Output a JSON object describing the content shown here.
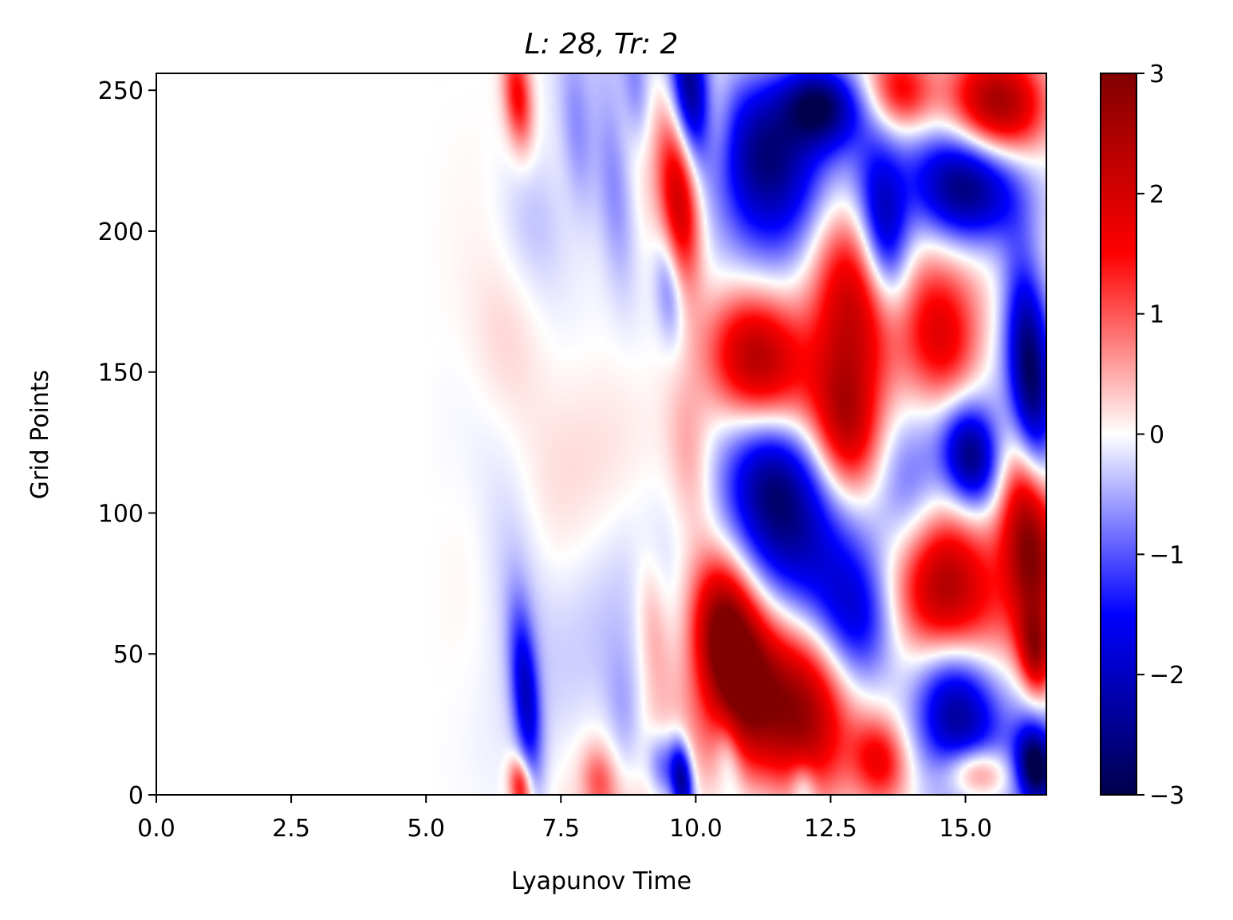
{
  "chart_data": {
    "type": "heatmap",
    "title": "L: 28, Tr: 2",
    "xlabel": "Lyapunov Time",
    "ylabel": "Grid Points",
    "xlim": [
      0,
      16.5
    ],
    "ylim": [
      0,
      256
    ],
    "x_ticks": [
      "0.0",
      "2.5",
      "5.0",
      "7.5",
      "10.0",
      "12.5",
      "15.0"
    ],
    "x_tick_values": [
      0,
      2.5,
      5,
      7.5,
      10,
      12.5,
      15
    ],
    "y_ticks": [
      "0",
      "50",
      "100",
      "150",
      "200",
      "250"
    ],
    "y_tick_values": [
      0,
      50,
      100,
      150,
      200,
      250
    ],
    "colorbar": {
      "colormap": "seismic",
      "range": [
        -3,
        3
      ],
      "ticks": [
        "3",
        "2",
        "1",
        "0",
        "−1",
        "−2",
        "−3"
      ],
      "tick_values": [
        3,
        2,
        1,
        0,
        -1,
        -2,
        -3
      ],
      "colors": [
        "#00004c",
        "#0000ff",
        "#ffffff",
        "#ff0000",
        "#800000"
      ]
    },
    "grid": false,
    "description_of_field": "Error field over space-time: near zero up to ~5 Lyapunov times, growing into large alternating positive (red) and negative (blue) diagonal bands after ~9, saturated near +/-3 by ~11-16.5.",
    "features": [
      {
        "x": 6.7,
        "y": 248,
        "w": 0.25,
        "h": 18,
        "v": 1.6
      },
      {
        "x": 6.75,
        "y": 3,
        "w": 0.2,
        "h": 10,
        "v": 1.6
      },
      {
        "x": 6.85,
        "y": 35,
        "w": 0.25,
        "h": 30,
        "v": -1.8
      },
      {
        "x": 6.6,
        "y": 85,
        "w": 0.6,
        "h": 40,
        "v": -0.4
      },
      {
        "x": 6.5,
        "y": 160,
        "w": 0.7,
        "h": 30,
        "v": 0.35
      },
      {
        "x": 7.0,
        "y": 205,
        "w": 0.6,
        "h": 25,
        "v": -0.35
      },
      {
        "x": 7.8,
        "y": 235,
        "w": 0.3,
        "h": 30,
        "v": -0.6
      },
      {
        "x": 8.5,
        "y": 215,
        "w": 0.35,
        "h": 35,
        "v": -0.8
      },
      {
        "x": 8.9,
        "y": 250,
        "w": 0.25,
        "h": 20,
        "v": -0.6
      },
      {
        "x": 8.2,
        "y": 5,
        "w": 0.3,
        "h": 12,
        "v": 0.8
      },
      {
        "x": 8.7,
        "y": 25,
        "w": 0.35,
        "h": 25,
        "v": -0.6
      },
      {
        "x": 9.2,
        "y": 60,
        "w": 0.3,
        "h": 25,
        "v": 0.6
      },
      {
        "x": 9.4,
        "y": 10,
        "w": 0.3,
        "h": 12,
        "v": -1.2
      },
      {
        "x": 9.75,
        "y": 5,
        "w": 0.2,
        "h": 14,
        "v": -2.4
      },
      {
        "x": 9.9,
        "y": 118,
        "w": 0.4,
        "h": 30,
        "v": 0.6
      },
      {
        "x": 9.5,
        "y": 180,
        "w": 0.25,
        "h": 20,
        "v": -0.8
      },
      {
        "x": 9.7,
        "y": 210,
        "w": 0.35,
        "h": 30,
        "v": 2.0
      },
      {
        "x": 9.9,
        "y": 250,
        "w": 0.35,
        "h": 25,
        "v": -2.6
      },
      {
        "x": 10.3,
        "y": 238,
        "w": 0.4,
        "h": 20,
        "v": 0.6
      },
      {
        "x": 10.5,
        "y": 60,
        "w": 0.55,
        "h": 25,
        "v": 2.2
      },
      {
        "x": 10.9,
        "y": 40,
        "w": 0.7,
        "h": 30,
        "v": 2.5
      },
      {
        "x": 10.6,
        "y": 15,
        "w": 0.25,
        "h": 15,
        "v": -0.8
      },
      {
        "x": 11.1,
        "y": 155,
        "w": 0.9,
        "h": 25,
        "v": 2.6
      },
      {
        "x": 11.4,
        "y": 112,
        "w": 0.9,
        "h": 28,
        "v": -2.4
      },
      {
        "x": 11.9,
        "y": 85,
        "w": 1.0,
        "h": 30,
        "v": -1.2
      },
      {
        "x": 11.2,
        "y": 230,
        "w": 1.0,
        "h": 30,
        "v": -2.7
      },
      {
        "x": 12.0,
        "y": 28,
        "w": 0.8,
        "h": 30,
        "v": 2.6
      },
      {
        "x": 12.0,
        "y": 3,
        "w": 0.25,
        "h": 10,
        "v": -0.8
      },
      {
        "x": 12.3,
        "y": 245,
        "w": 0.7,
        "h": 15,
        "v": -2.6
      },
      {
        "x": 12.8,
        "y": 180,
        "w": 0.7,
        "h": 35,
        "v": 1.8
      },
      {
        "x": 12.8,
        "y": 130,
        "w": 0.6,
        "h": 25,
        "v": 1.9
      },
      {
        "x": 13.0,
        "y": 62,
        "w": 0.7,
        "h": 25,
        "v": -1.5
      },
      {
        "x": 13.5,
        "y": 200,
        "w": 0.45,
        "h": 28,
        "v": -2.0
      },
      {
        "x": 13.8,
        "y": 250,
        "w": 0.6,
        "h": 15,
        "v": 1.8
      },
      {
        "x": 13.4,
        "y": 12,
        "w": 0.5,
        "h": 15,
        "v": 1.6
      },
      {
        "x": 14.0,
        "y": 100,
        "w": 0.6,
        "h": 30,
        "v": -0.8
      },
      {
        "x": 14.5,
        "y": 75,
        "w": 0.9,
        "h": 30,
        "v": 2.7
      },
      {
        "x": 14.8,
        "y": 32,
        "w": 0.8,
        "h": 28,
        "v": -2.8
      },
      {
        "x": 15.2,
        "y": 8,
        "w": 0.6,
        "h": 10,
        "v": 1.8
      },
      {
        "x": 14.6,
        "y": 160,
        "w": 0.7,
        "h": 25,
        "v": 1.6
      },
      {
        "x": 15.1,
        "y": 120,
        "w": 0.5,
        "h": 18,
        "v": -2.2
      },
      {
        "x": 15.0,
        "y": 215,
        "w": 1.0,
        "h": 20,
        "v": -2.8
      },
      {
        "x": 15.6,
        "y": 245,
        "w": 0.9,
        "h": 18,
        "v": 2.7
      },
      {
        "x": 16.2,
        "y": 150,
        "w": 0.4,
        "h": 40,
        "v": -2.6
      },
      {
        "x": 16.2,
        "y": 90,
        "w": 0.5,
        "h": 35,
        "v": 2.6
      },
      {
        "x": 16.3,
        "y": 10,
        "w": 0.35,
        "h": 14,
        "v": -2.8
      },
      {
        "x": 16.3,
        "y": 50,
        "w": 0.3,
        "h": 15,
        "v": 2.0
      }
    ]
  }
}
